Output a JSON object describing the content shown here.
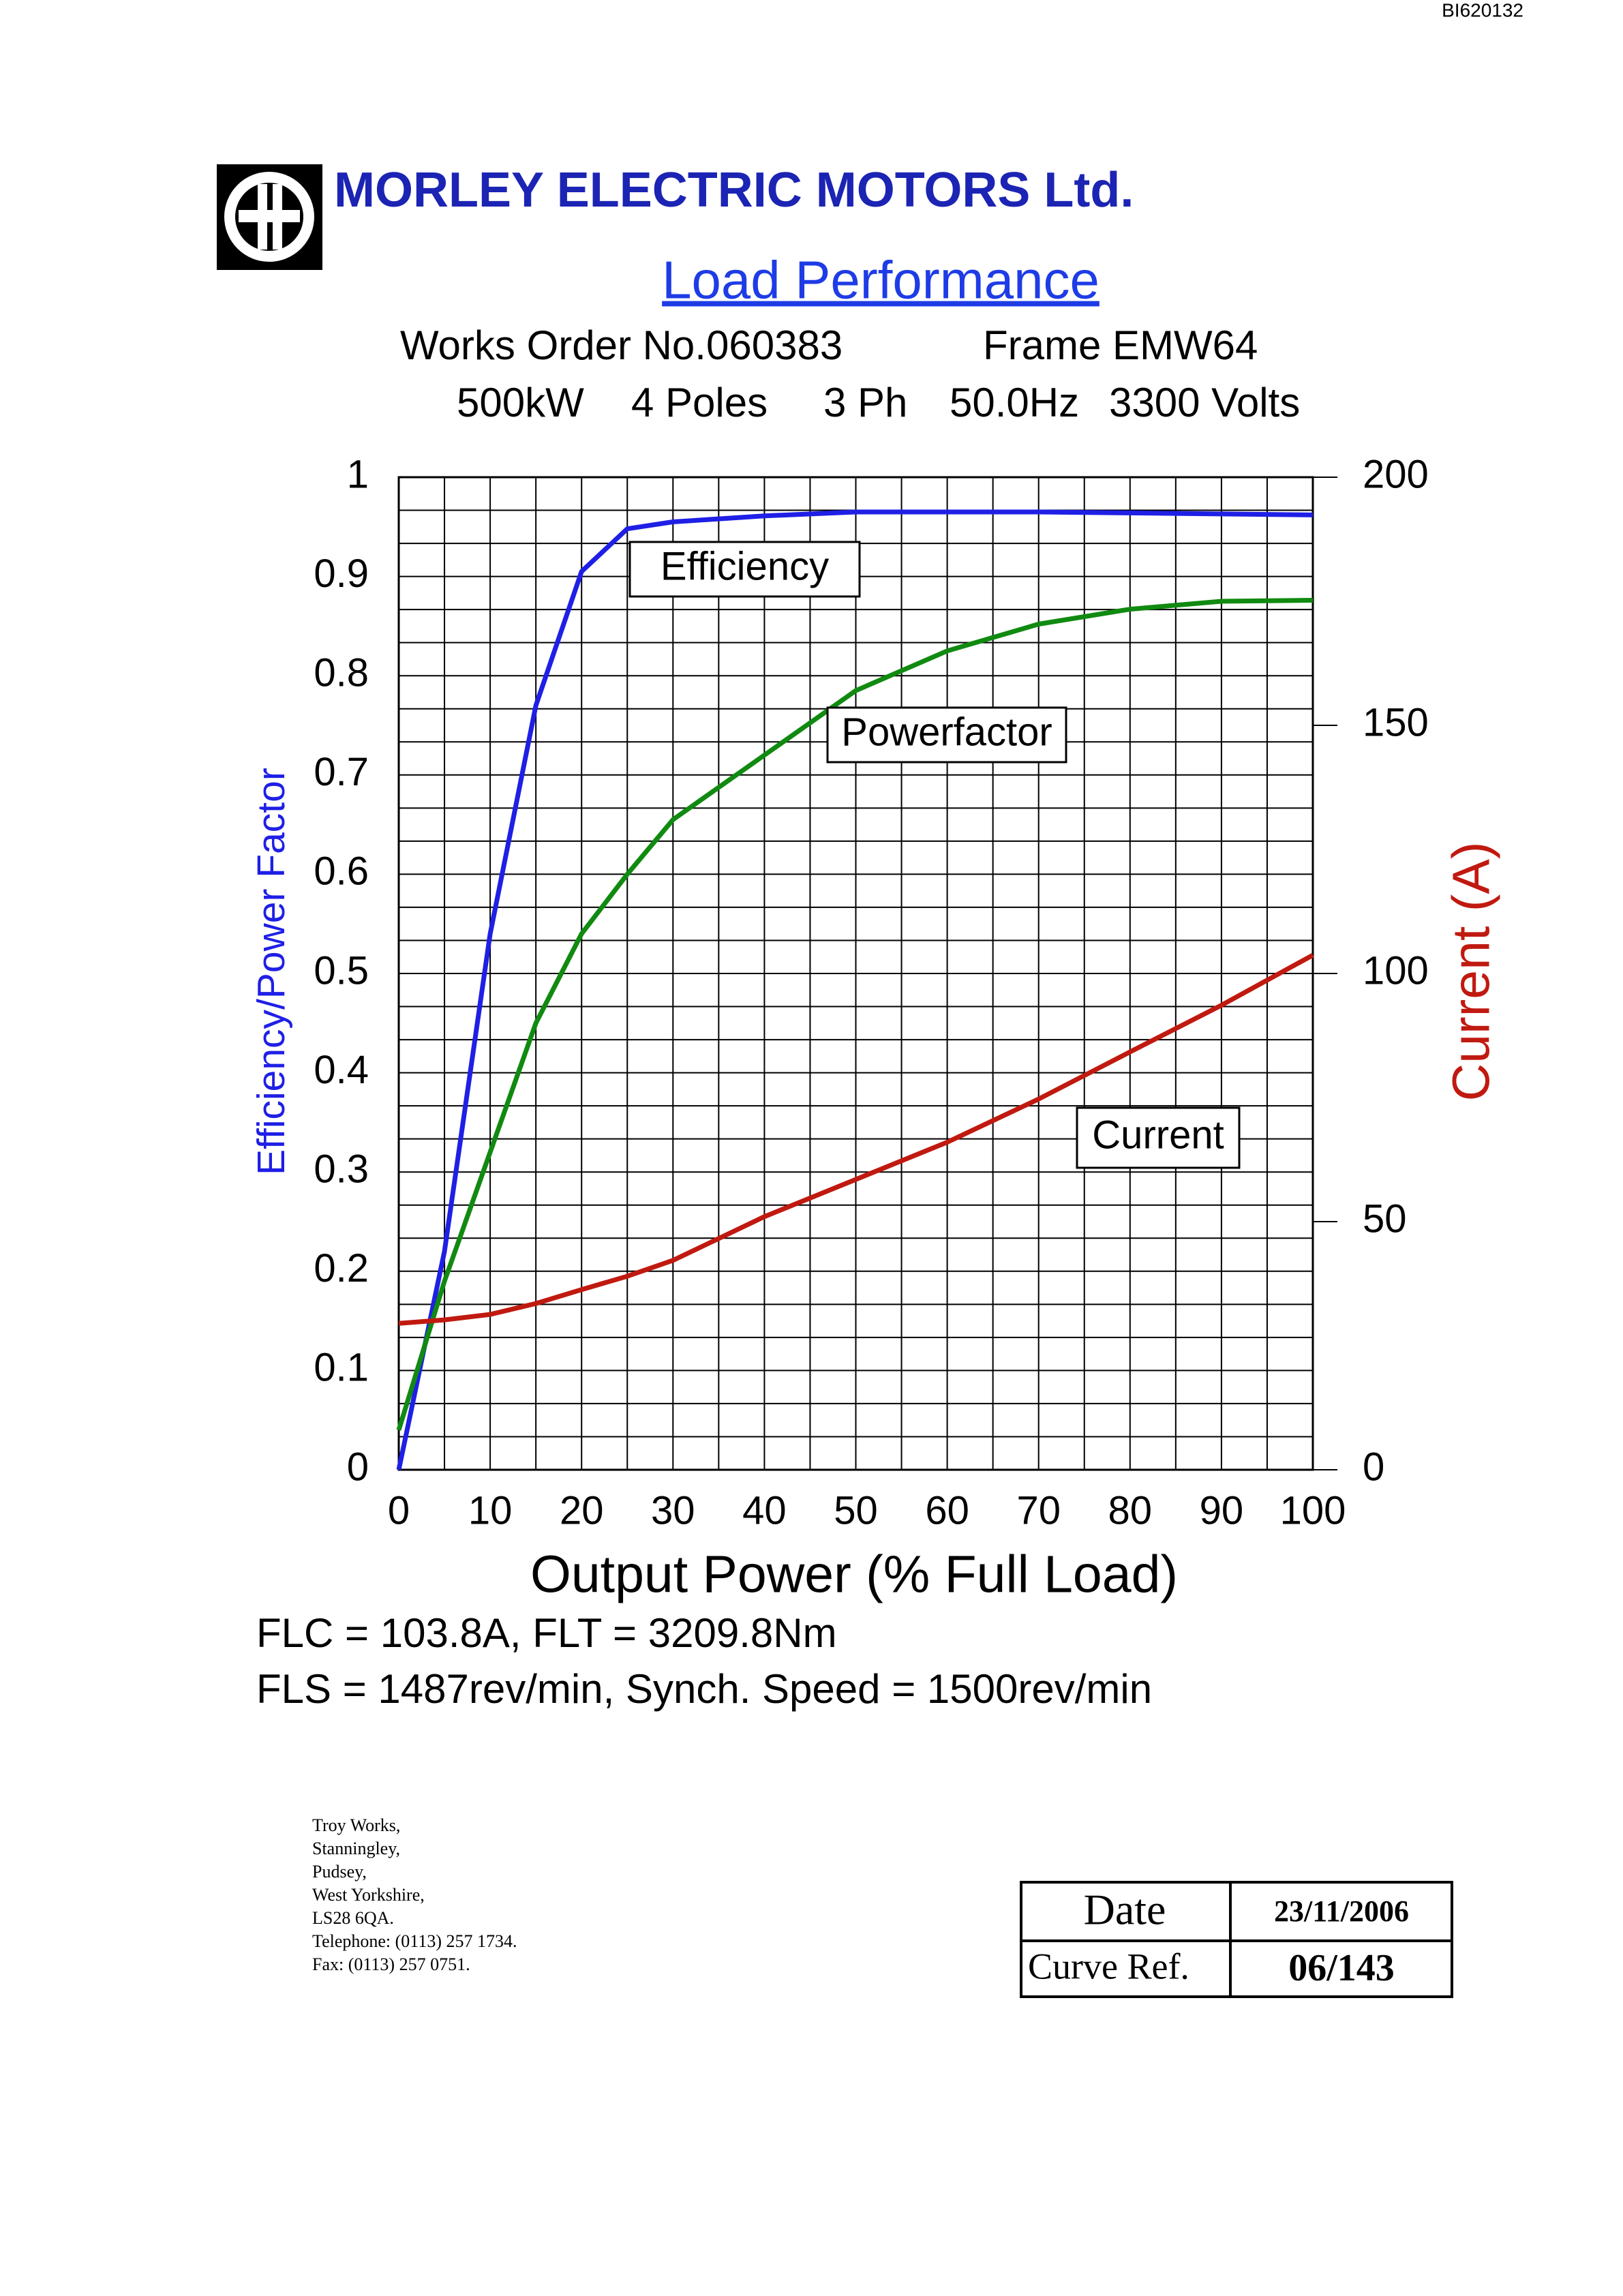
{
  "doc_id": "BI620132",
  "header": {
    "company": "MORLEY ELECTRIC MOTORS Ltd.",
    "title": "Load Performance",
    "works_order": "Works Order No.060383",
    "frame": "Frame EMW64",
    "specs": [
      "500kW",
      "4 Poles",
      "3 Ph",
      "50.0Hz",
      "3300 Volts"
    ]
  },
  "chart_data": {
    "type": "line",
    "x_label": "Output Power (% Full Load)",
    "y_label": "Efficiency/Power Factor",
    "y2_label": "Current (A)",
    "x": [
      0,
      5,
      10,
      15,
      20,
      25,
      30,
      40,
      50,
      60,
      70,
      80,
      90,
      100
    ],
    "xlim": [
      0,
      100
    ],
    "xticks": [
      0,
      10,
      20,
      30,
      40,
      50,
      60,
      70,
      80,
      90,
      100
    ],
    "ylim": [
      0,
      1
    ],
    "yticks": [
      0,
      0.1,
      0.2,
      0.3,
      0.4,
      0.5,
      0.6,
      0.7,
      0.8,
      0.9,
      1
    ],
    "y2lim": [
      0,
      200
    ],
    "y2ticks": [
      0,
      50,
      100,
      150,
      200
    ],
    "grid": true,
    "series": [
      {
        "name": "Efficiency",
        "color": "#1f1fe6",
        "values": [
          0,
          0.22,
          0.54,
          0.77,
          0.905,
          0.948,
          0.955,
          0.961,
          0.965,
          0.965,
          0.965,
          0.964,
          0.963,
          0.962
        ]
      },
      {
        "name": "Powerfactor",
        "color": "#108a10",
        "values": [
          0.04,
          0.19,
          0.32,
          0.45,
          0.54,
          0.6,
          0.655,
          0.72,
          0.785,
          0.825,
          0.852,
          0.867,
          0.875,
          0.876
        ]
      },
      {
        "name": "Current",
        "color": "#c01a10",
        "axis": "y2",
        "values": [
          29.5,
          30.2,
          31.3,
          33.5,
          36.3,
          39,
          42.2,
          51,
          58.5,
          66,
          74.7,
          84.2,
          93.6,
          103.7
        ]
      }
    ]
  },
  "footer": {
    "lines": [
      "FLC = 103.8A, FLT = 3209.8Nm",
      "FLS = 1487rev/min, Synch. Speed = 1500rev/min"
    ],
    "address": [
      "Troy Works,",
      "Stanningley,",
      "Pudsey,",
      "West Yorkshire,",
      "LS28 6QA.",
      "Telephone: (0113) 257 1734.",
      "Fax: (0113) 257 0751."
    ],
    "table": {
      "rows": [
        [
          "Date",
          "23/11/2006"
        ],
        [
          "Curve Ref.",
          "06/143"
        ]
      ]
    }
  }
}
